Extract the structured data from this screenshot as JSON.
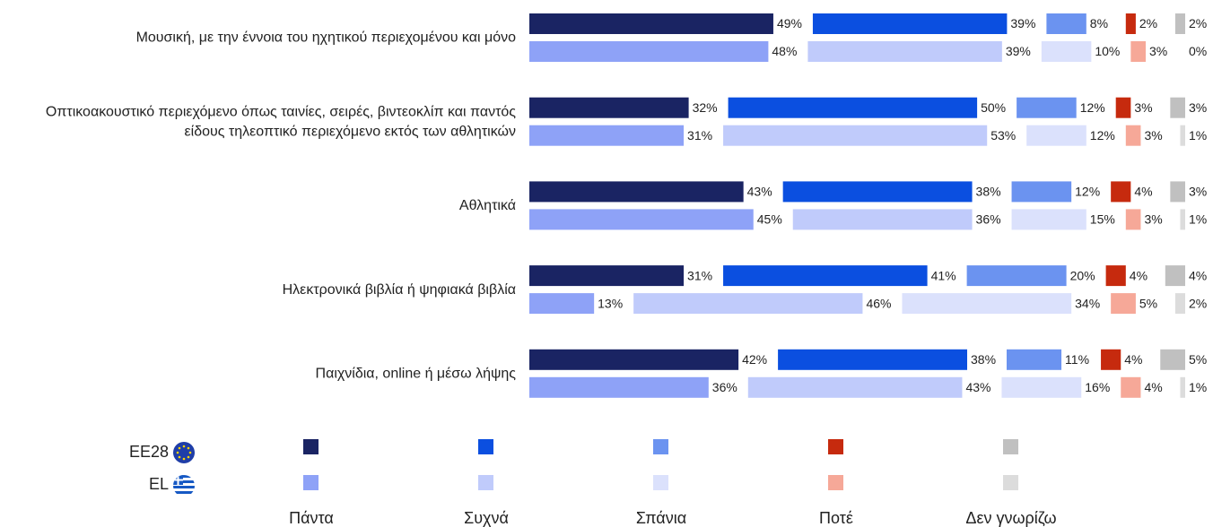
{
  "chart_data": {
    "type": "bar",
    "categories": [
      [
        "Μουσική, με την έννοια του ηχητικού περιεχομένου και μόνο"
      ],
      [
        "Οπτικοακουστικό περιεχόμενο όπως ταινίες, σειρές, βιντεοκλίπ και παντός",
        "είδους τηλεοπτικό περιεχόμενο εκτός των αθλητικών"
      ],
      [
        "Αθλητικά"
      ],
      [
        "Ηλεκτρονικά βιβλία ή ψηφιακά βιβλία"
      ],
      [
        "Παιχνίδια, online ή μέσω λήψης"
      ]
    ],
    "answers": [
      {
        "name": "Πάντα",
        "colors": [
          "#1a2463",
          "#8ea2f7"
        ]
      },
      {
        "name": "Συχνά",
        "colors": [
          "#0b4fe0",
          "#c0cbfb"
        ]
      },
      {
        "name": "Σπάνια",
        "colors": [
          "#6b93f0",
          "#dbe1fc"
        ]
      },
      {
        "name": "Ποτέ",
        "colors": [
          "#c62a0e",
          "#f6a898"
        ]
      },
      {
        "name": "Δεν γνωρίζω",
        "colors": [
          "#c0c0c0",
          "#dcdcdc"
        ]
      }
    ],
    "groups": [
      {
        "name": "EE28",
        "values": [
          [
            49,
            39,
            8,
            2,
            2
          ],
          [
            32,
            50,
            12,
            3,
            3
          ],
          [
            43,
            38,
            12,
            4,
            3
          ],
          [
            31,
            41,
            20,
            4,
            4
          ],
          [
            42,
            38,
            11,
            4,
            5
          ]
        ],
        "value_labels": [
          [
            "49%",
            "39%",
            "8%",
            "2%",
            "2%"
          ],
          [
            "32%",
            "50%",
            "12%",
            "3%",
            "3%"
          ],
          [
            "43%",
            "38%",
            "12%",
            "4%",
            "3%"
          ],
          [
            "31%",
            "41%",
            "20%",
            "4%",
            "4%"
          ],
          [
            "42%",
            "38%",
            "11%",
            "4%",
            "5%"
          ]
        ]
      },
      {
        "name": "EL",
        "values": [
          [
            48,
            39,
            10,
            3,
            0
          ],
          [
            31,
            53,
            12,
            3,
            1
          ],
          [
            45,
            36,
            15,
            3,
            1
          ],
          [
            13,
            46,
            34,
            5,
            2
          ],
          [
            36,
            43,
            16,
            4,
            1
          ]
        ],
        "value_labels": [
          [
            "48%",
            "39%",
            "10%",
            "3%",
            "0%"
          ],
          [
            "31%",
            "53%",
            "12%",
            "3%",
            "1%"
          ],
          [
            "45%",
            "36%",
            "15%",
            "3%",
            "1%"
          ],
          [
            "13%",
            "46%",
            "34%",
            "5%",
            "2%"
          ],
          [
            "36%",
            "43%",
            "16%",
            "4%",
            "1%"
          ]
        ]
      }
    ]
  }
}
